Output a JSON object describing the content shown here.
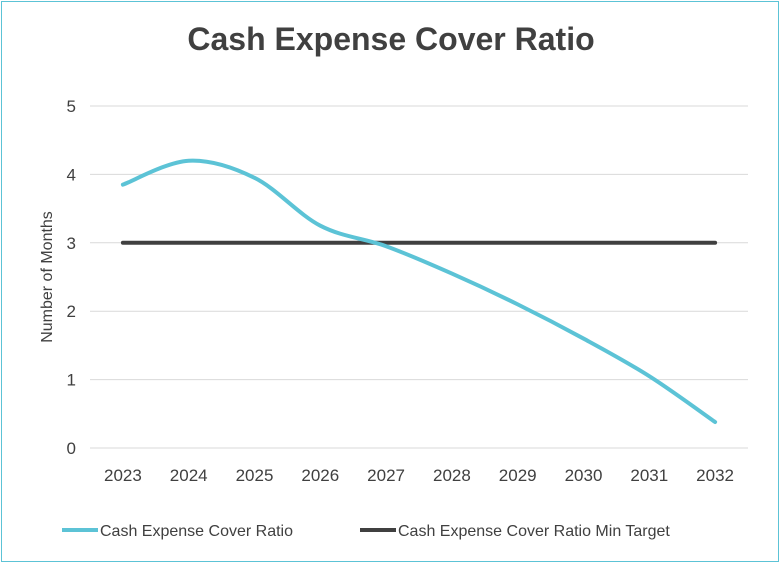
{
  "chart_data": {
    "type": "line",
    "title": "Cash Expense Cover Ratio",
    "xlabel": "",
    "ylabel": "Number of Months",
    "ylim": [
      0,
      5
    ],
    "yticks": [
      "0",
      "1",
      "2",
      "3",
      "4",
      "5"
    ],
    "categories": [
      "2023",
      "2024",
      "2025",
      "2026",
      "2027",
      "2028",
      "2029",
      "2030",
      "2031",
      "2032"
    ],
    "grid": true,
    "legend_position": "bottom",
    "series": [
      {
        "name": "Cash Expense Cover Ratio",
        "color": "#5cc3d6",
        "smooth": true,
        "values": [
          3.85,
          4.2,
          3.95,
          3.25,
          2.95,
          2.55,
          2.1,
          1.6,
          1.05,
          0.38
        ]
      },
      {
        "name": "Cash Expense Cover Ratio Min Target",
        "color": "#404040",
        "smooth": false,
        "values": [
          3,
          3,
          3,
          3,
          3,
          3,
          3,
          3,
          3,
          3
        ]
      }
    ]
  }
}
